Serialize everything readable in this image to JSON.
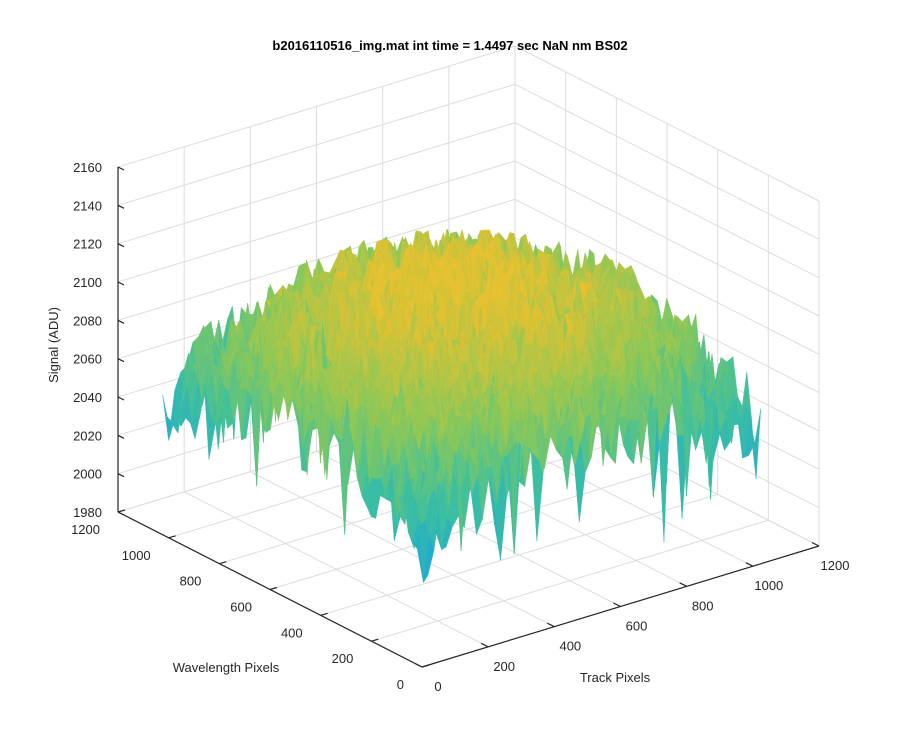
{
  "chart_data": {
    "type": "surface",
    "title": "b2016110516_img.mat int time = 1.4497 sec  NaN nm BS02",
    "xlabel": "Track Pixels",
    "ylabel": "Wavelength Pixels",
    "zlabel": "Signal (ADU)",
    "xlim": [
      0,
      1200
    ],
    "ylim": [
      0,
      1200
    ],
    "zlim": [
      1980,
      2160
    ],
    "x_ticks": [
      "0",
      "200",
      "400",
      "600",
      "800",
      "1000",
      "1200"
    ],
    "y_ticks": [
      "0",
      "200",
      "400",
      "600",
      "800",
      "1000",
      "1200"
    ],
    "z_ticks": [
      "1980",
      "2000",
      "2020",
      "2040",
      "2060",
      "2080",
      "2100",
      "2120",
      "2140",
      "2160"
    ],
    "x_range_data": [
      0,
      1024
    ],
    "y_range_data": [
      0,
      1024
    ],
    "surface_summary": {
      "typical_min": 2000,
      "typical_max": 2145,
      "center_mean": 2115,
      "edge_mean": 2060
    },
    "colormap": [
      "#0072bd",
      "#1fa8d4",
      "#3cbfa0",
      "#8bc858",
      "#e6c12f",
      "#f4c542"
    ],
    "grid": true
  }
}
